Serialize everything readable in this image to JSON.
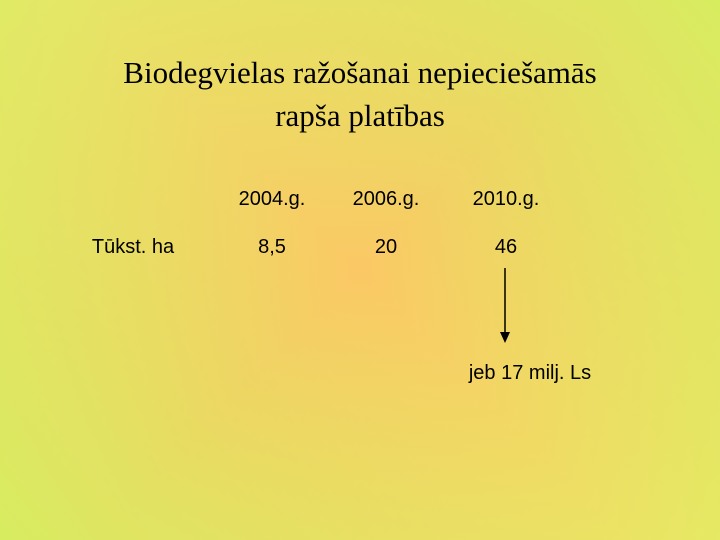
{
  "title": {
    "lines": [
      "Biodegvielas ražošanai nepieciešamās",
      "rapša platības"
    ]
  },
  "table": {
    "header": [
      "2004.g.",
      "2006.g.",
      "2010.g."
    ],
    "rows": [
      [
        "Tūkst. ha",
        "8,5",
        "20",
        "46"
      ]
    ]
  },
  "note": "jeb 17 milj. Ls"
}
